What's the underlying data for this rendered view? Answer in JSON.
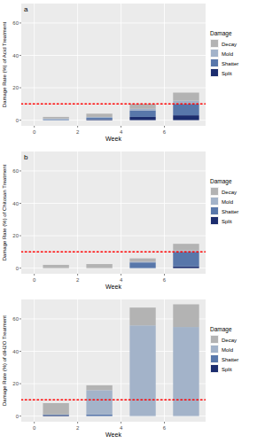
{
  "chart_data": [
    {
      "type": "bar",
      "title": "a",
      "stacked": true,
      "x_label": "Week",
      "y_label": "Damage Rate (%) of Acid Treatment",
      "legend_title": "Damage",
      "legend": "right",
      "grid": true,
      "x": [
        1,
        3,
        5,
        7
      ],
      "xlim": [
        -0.6,
        7.9
      ],
      "xticks": [
        0,
        2,
        4,
        6
      ],
      "ylim": [
        -3.5,
        72
      ],
      "yticks": [
        0,
        20,
        40,
        60
      ],
      "reference_line": 10,
      "reference_color": "#ff0000",
      "series": [
        {
          "name": "Decay",
          "color": "#b3b3b3",
          "values": [
            1,
            2,
            3,
            5
          ]
        },
        {
          "name": "Mold",
          "color": "#a3b3c9",
          "values": [
            0.5,
            0.5,
            1,
            2
          ]
        },
        {
          "name": "Shatter",
          "color": "#5877aa",
          "values": [
            0.5,
            1,
            4,
            7
          ]
        },
        {
          "name": "Split",
          "color": "#1c2d6e",
          "values": [
            0,
            0.5,
            2,
            3
          ]
        }
      ]
    },
    {
      "type": "bar",
      "title": "b",
      "stacked": true,
      "x_label": "Week",
      "y_label": "Damage Rate (%) of Chitosan Treatment",
      "legend_title": "Damage",
      "legend": "right",
      "grid": true,
      "x": [
        1,
        3,
        5,
        7
      ],
      "xlim": [
        -0.6,
        7.9
      ],
      "xticks": [
        0,
        2,
        4,
        6
      ],
      "ylim": [
        -3.5,
        72
      ],
      "yticks": [
        0,
        20,
        40,
        60
      ],
      "reference_line": 10,
      "reference_color": "#ff0000",
      "series": [
        {
          "name": "Decay",
          "color": "#b3b3b3",
          "values": [
            2,
            2.5,
            2,
            4
          ]
        },
        {
          "name": "Mold",
          "color": "#a3b3c9",
          "values": [
            0,
            0,
            0.5,
            1
          ]
        },
        {
          "name": "Shatter",
          "color": "#5877aa",
          "values": [
            0,
            0,
            3.5,
            9
          ]
        },
        {
          "name": "Split",
          "color": "#1c2d6e",
          "values": [
            0,
            0,
            0,
            1
          ]
        }
      ]
    },
    {
      "type": "bar",
      "stacked": true,
      "x_label": "Week",
      "y_label": "Damage Rate (%) of diH2O Treatment",
      "legend_title": "Damage",
      "legend": "right",
      "grid": true,
      "x": [
        1,
        3,
        5,
        7
      ],
      "xlim": [
        -0.6,
        7.9
      ],
      "xticks": [
        0,
        2,
        4,
        6
      ],
      "ylim": [
        -3.5,
        72
      ],
      "yticks": [
        0,
        20,
        40,
        60
      ],
      "reference_line": 10,
      "reference_color": "#ff0000",
      "series": [
        {
          "name": "Decay",
          "color": "#b3b3b3",
          "values": [
            7,
            3,
            11,
            14
          ]
        },
        {
          "name": "Mold",
          "color": "#a3b3c9",
          "values": [
            0,
            15,
            56,
            55
          ]
        },
        {
          "name": "Shatter",
          "color": "#5877aa",
          "values": [
            0.5,
            1,
            0,
            0
          ]
        },
        {
          "name": "Split",
          "color": "#1c2d6e",
          "values": [
            0.5,
            0,
            0,
            0
          ]
        }
      ]
    }
  ]
}
